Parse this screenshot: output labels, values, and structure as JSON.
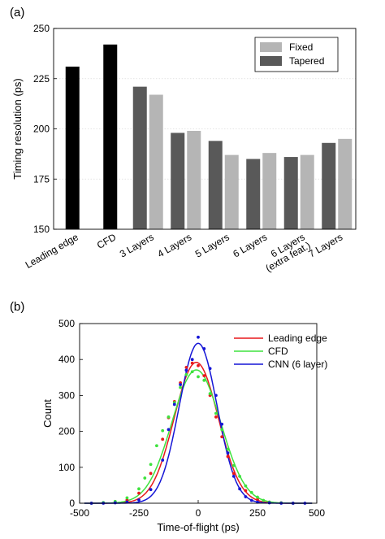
{
  "chart_data": [
    {
      "type": "bar",
      "panel_label": "(a)",
      "ylabel": "Timing resolution (ps)",
      "ylim": [
        150,
        250
      ],
      "yticks": [
        150,
        175,
        200,
        225,
        250
      ],
      "grid": "horizontal",
      "legend_position": "top-right",
      "groups": [
        {
          "label": "Leading edge",
          "bars": [
            {
              "series": "single",
              "value": 231
            }
          ]
        },
        {
          "label": "CFD",
          "bars": [
            {
              "series": "single",
              "value": 242
            }
          ]
        },
        {
          "label": "3 Layers",
          "bars": [
            {
              "series": "Tapered",
              "value": 221
            },
            {
              "series": "Fixed",
              "value": 217
            }
          ]
        },
        {
          "label": "4 Layers",
          "bars": [
            {
              "series": "Tapered",
              "value": 198
            },
            {
              "series": "Fixed",
              "value": 199
            }
          ]
        },
        {
          "label": "5 Layers",
          "bars": [
            {
              "series": "Tapered",
              "value": 194
            },
            {
              "series": "Fixed",
              "value": 187
            }
          ]
        },
        {
          "label": "6 Layers",
          "bars": [
            {
              "series": "Tapered",
              "value": 185
            },
            {
              "series": "Fixed",
              "value": 188
            }
          ]
        },
        {
          "label": "6 Layers",
          "label2": "(extra feat.)",
          "bars": [
            {
              "series": "Tapered",
              "value": 186
            },
            {
              "series": "Fixed",
              "value": 187
            }
          ]
        },
        {
          "label": "7 Layers",
          "bars": [
            {
              "series": "Tapered",
              "value": 193
            },
            {
              "series": "Fixed",
              "value": 195
            }
          ]
        }
      ],
      "legend": [
        {
          "name": "Fixed",
          "color": "#b5b5b5"
        },
        {
          "name": "Tapered",
          "color": "#595959"
        }
      ],
      "colors": {
        "single": "#000000",
        "Tapered": "#595959",
        "Fixed": "#b5b5b5"
      }
    },
    {
      "type": "scatter",
      "panel_label": "(b)",
      "xlabel": "Time-of-flight (ps)",
      "ylabel": "Count",
      "xlim": [
        -500,
        500
      ],
      "ylim": [
        0,
        500
      ],
      "xticks": [
        -500,
        -250,
        0,
        250,
        500
      ],
      "yticks": [
        0,
        100,
        200,
        300,
        400,
        500
      ],
      "legend_position": "top-right",
      "series": [
        {
          "name": "Leading edge",
          "color": "#e8191b",
          "fit": {
            "amp": 392,
            "mu": -8,
            "sigma": 93
          },
          "points": [
            [
              -450,
              0
            ],
            [
              -400,
              1
            ],
            [
              -350,
              3
            ],
            [
              -300,
              9
            ],
            [
              -250,
              28
            ],
            [
              -200,
              83
            ],
            [
              -150,
              178
            ],
            [
              -125,
              238
            ],
            [
              -100,
              283
            ],
            [
              -75,
              335
            ],
            [
              -50,
              378
            ],
            [
              -25,
              390
            ],
            [
              0,
              383
            ],
            [
              25,
              355
            ],
            [
              50,
              300
            ],
            [
              75,
              240
            ],
            [
              100,
              185
            ],
            [
              125,
              130
            ],
            [
              150,
              83
            ],
            [
              200,
              35
            ],
            [
              250,
              10
            ],
            [
              300,
              3
            ],
            [
              350,
              1
            ],
            [
              400,
              0
            ]
          ]
        },
        {
          "name": "CFD",
          "color": "#3ee23e",
          "fit": {
            "amp": 371,
            "mu": -8,
            "sigma": 103
          },
          "points": [
            [
              -450,
              0
            ],
            [
              -400,
              2
            ],
            [
              -350,
              5
            ],
            [
              -300,
              15
            ],
            [
              -250,
              40
            ],
            [
              -225,
              70
            ],
            [
              -200,
              108
            ],
            [
              -175,
              160
            ],
            [
              -150,
              202
            ],
            [
              -125,
              240
            ],
            [
              -100,
              280
            ],
            [
              -75,
              322
            ],
            [
              -50,
              358
            ],
            [
              -25,
              366
            ],
            [
              0,
              352
            ],
            [
              25,
              342
            ],
            [
              50,
              305
            ],
            [
              75,
              250
            ],
            [
              100,
              205
            ],
            [
              125,
              150
            ],
            [
              150,
              105
            ],
            [
              175,
              75
            ],
            [
              200,
              48
            ],
            [
              225,
              30
            ],
            [
              250,
              17
            ],
            [
              275,
              8
            ],
            [
              300,
              3
            ],
            [
              350,
              1
            ],
            [
              400,
              0
            ]
          ]
        },
        {
          "name": "CNN (6 layer)",
          "color": "#1515d6",
          "fit": {
            "amp": 445,
            "mu": 0,
            "sigma": 80
          },
          "points": [
            [
              -450,
              0
            ],
            [
              -400,
              0
            ],
            [
              -350,
              1
            ],
            [
              -300,
              3
            ],
            [
              -250,
              9
            ],
            [
              -200,
              38
            ],
            [
              -150,
              120
            ],
            [
              -125,
              205
            ],
            [
              -100,
              275
            ],
            [
              -75,
              330
            ],
            [
              -50,
              370
            ],
            [
              -25,
              400
            ],
            [
              0,
              462
            ],
            [
              25,
              430
            ],
            [
              50,
              375
            ],
            [
              75,
              300
            ],
            [
              100,
              220
            ],
            [
              125,
              140
            ],
            [
              150,
              75
            ],
            [
              175,
              40
            ],
            [
              200,
              18
            ],
            [
              225,
              8
            ],
            [
              250,
              3
            ],
            [
              300,
              1
            ],
            [
              350,
              0
            ],
            [
              400,
              0
            ],
            [
              450,
              0
            ]
          ]
        }
      ]
    }
  ]
}
